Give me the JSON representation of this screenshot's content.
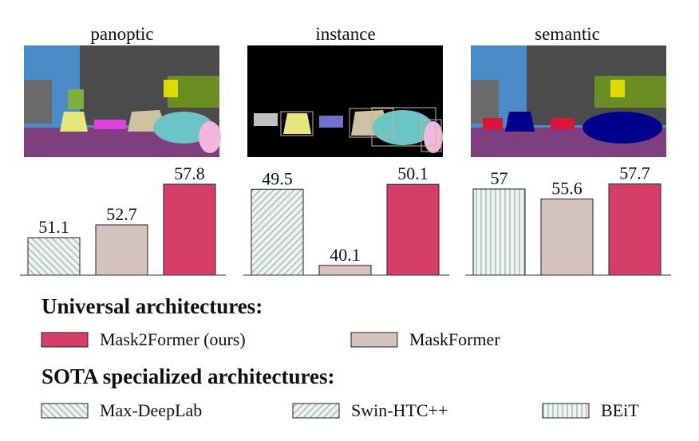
{
  "chart_data": [
    {
      "type": "bar",
      "title": "panoptic",
      "values": [
        51.1,
        52.7,
        57.8
      ],
      "colors": [
        "#9fb3ad",
        "#d5c3bd",
        "#d63e6a"
      ],
      "patterns": [
        "backslash",
        "solid",
        "solid"
      ],
      "ylim": [
        46.4,
        59.0
      ]
    },
    {
      "type": "bar",
      "title": "instance",
      "values": [
        49.5,
        40.1,
        50.1
      ],
      "colors": [
        "#9fb3ad",
        "#d5c3bd",
        "#d63e6a"
      ],
      "patterns": [
        "slash",
        "solid",
        "solid"
      ],
      "ylim": [
        38.9,
        51.3
      ]
    },
    {
      "type": "bar",
      "title": "semantic",
      "values": [
        57.0,
        55.6,
        57.7
      ],
      "colors": [
        "#9fb3ad",
        "#d5c3bd",
        "#d63e6a"
      ],
      "patterns": [
        "vertical",
        "solid",
        "solid"
      ],
      "ylim": [
        45.0,
        59.0
      ]
    }
  ],
  "legend": {
    "groups": [
      {
        "title": "Universal architectures:",
        "entries": [
          {
            "name": "Mask2Former (ours)",
            "color": "#d63e6a",
            "pattern": "solid"
          },
          {
            "name": "MaskFormer",
            "color": "#d5c3bd",
            "pattern": "solid"
          }
        ]
      },
      {
        "title": "SOTA specialized architectures:",
        "entries": [
          {
            "name": "Max-DeepLab",
            "color": "#9fb3ad",
            "pattern": "backslash"
          },
          {
            "name": "Swin-HTC++",
            "color": "#9fb3ad",
            "pattern": "slash"
          },
          {
            "name": "BEiT",
            "color": "#9fb3ad",
            "pattern": "vertical"
          }
        ]
      }
    ]
  }
}
